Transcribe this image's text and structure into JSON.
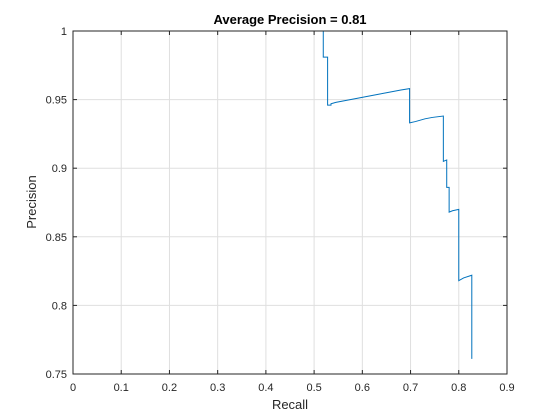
{
  "chart_data": {
    "type": "line",
    "title": "Average Precision = 0.81",
    "xlabel": "Recall",
    "ylabel": "Precision",
    "xlim": [
      0,
      0.9
    ],
    "ylim": [
      0.75,
      1
    ],
    "grid": true,
    "x_ticks": [
      "0",
      "0.1",
      "0.2",
      "0.3",
      "0.4",
      "0.5",
      "0.6",
      "0.7",
      "0.8",
      "0.9"
    ],
    "y_ticks": [
      "0.75",
      "0.8",
      "0.85",
      "0.9",
      "0.95",
      "1"
    ],
    "series": [
      {
        "color": "#0072bd",
        "points": [
          [
            0,
            1
          ],
          [
            0.519,
            1
          ],
          [
            0.519,
            0.981
          ],
          [
            0.528,
            0.981
          ],
          [
            0.528,
            0.946
          ],
          [
            0.535,
            0.946
          ],
          [
            0.535,
            0.947
          ],
          [
            0.545,
            0.948
          ],
          [
            0.56,
            0.949
          ],
          [
            0.575,
            0.95
          ],
          [
            0.59,
            0.951
          ],
          [
            0.605,
            0.952
          ],
          [
            0.62,
            0.953
          ],
          [
            0.635,
            0.954
          ],
          [
            0.65,
            0.955
          ],
          [
            0.665,
            0.956
          ],
          [
            0.68,
            0.957
          ],
          [
            0.698,
            0.958
          ],
          [
            0.698,
            0.933
          ],
          [
            0.71,
            0.934
          ],
          [
            0.72,
            0.935
          ],
          [
            0.73,
            0.936
          ],
          [
            0.745,
            0.937
          ],
          [
            0.768,
            0.938
          ],
          [
            0.768,
            0.905
          ],
          [
            0.775,
            0.906
          ],
          [
            0.775,
            0.886
          ],
          [
            0.78,
            0.886
          ],
          [
            0.78,
            0.868
          ],
          [
            0.787,
            0.869
          ],
          [
            0.8,
            0.87
          ],
          [
            0.8,
            0.818
          ],
          [
            0.81,
            0.82
          ],
          [
            0.827,
            0.822
          ],
          [
            0.827,
            0.761
          ]
        ]
      }
    ]
  }
}
